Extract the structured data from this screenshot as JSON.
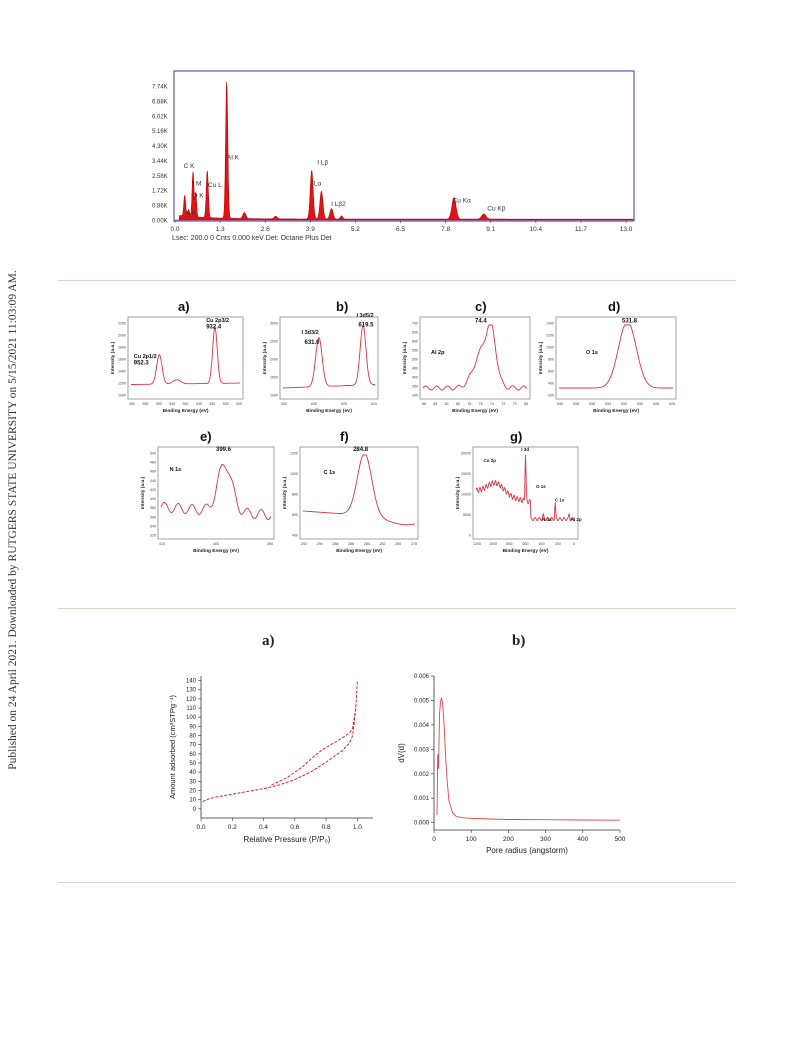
{
  "side_note": "Published on 24 April 2021. Downloaded by RUTGERS STATE UNIVERSITY on 5/15/2021 11:03:09 AM.",
  "eds": {
    "footer": "Lsec: 200.0 0 Cnts  0.000 keV Det: Octane Plus Det",
    "y_ticks": [
      "7.74K",
      "6.88K",
      "6.02K",
      "5.16K",
      "4.30K",
      "3.44K",
      "2.58K",
      "1.72K",
      "0.86K",
      "0.00K"
    ],
    "x_ticks": [
      "0.0",
      "1.3",
      "2.6",
      "3.9",
      "5.2",
      "6.5",
      "7.8",
      "9.1",
      "10.4",
      "11.7",
      "13.0"
    ],
    "peak_labels": [
      "C  K",
      "N  K",
      "O  K",
      "Cu L",
      "I  M",
      "Al K",
      "I  Lβ",
      "I  Lα",
      "I  Lβ2",
      "Cu Kα",
      "Cu Kβ"
    ]
  },
  "xps": {
    "y_label": "Intensity (a.u.)",
    "x_label": "Binding Energy (eV)",
    "panels": [
      {
        "letter": "a)",
        "annotations": [
          "Cu 2p1/2",
          "952.3",
          "Cu 2p3/2",
          "932.4"
        ],
        "x_ticks": [
          "960",
          "955",
          "950",
          "945",
          "940",
          "935",
          "930",
          "925",
          "920"
        ],
        "y_ticks": [
          "1000",
          "1200",
          "1400",
          "1600",
          "1800",
          "2000",
          "2200"
        ]
      },
      {
        "letter": "b)",
        "annotations": [
          "I 3d3/2",
          "631.0",
          "I 3d5/2",
          "619.5"
        ],
        "x_ticks": [
          "640",
          "630",
          "620",
          "610"
        ],
        "y_ticks": [
          "1000",
          "1500",
          "2000",
          "2500",
          "3000"
        ]
      },
      {
        "letter": "c)",
        "annotations": [
          "Al 2p",
          "74.4"
        ],
        "x_ticks": [
          "86",
          "84",
          "82",
          "80",
          "78",
          "76",
          "74",
          "72",
          "70",
          "68"
        ],
        "y_ticks": [
          "300",
          "350",
          "400",
          "450",
          "500",
          "550",
          "600",
          "650",
          "700"
        ]
      },
      {
        "letter": "d)",
        "annotations": [
          "O 1s",
          "531.8"
        ],
        "x_ticks": [
          "540",
          "538",
          "536",
          "534",
          "532",
          "530",
          "528",
          "526"
        ],
        "y_ticks": [
          "200",
          "400",
          "600",
          "800",
          "1000",
          "1200",
          "1400"
        ]
      },
      {
        "letter": "e)",
        "annotations": [
          "N 1s",
          "399.6"
        ],
        "x_ticks": [
          "410",
          "400",
          "390"
        ],
        "y_ticks": [
          "320",
          "340",
          "360",
          "380",
          "400",
          "420",
          "440",
          "460",
          "480",
          "500"
        ]
      },
      {
        "letter": "f)",
        "annotations": [
          "C 1s",
          "284.8"
        ],
        "x_ticks": [
          "292",
          "290",
          "288",
          "286",
          "284",
          "282",
          "280",
          "278"
        ],
        "y_ticks": [
          "400",
          "600",
          "800",
          "1000",
          "1200"
        ]
      },
      {
        "letter": "g)",
        "annotations": [
          "Cu 2p",
          "I 3d",
          "O 1s",
          "C 1s",
          "N 1s",
          "Al 2p"
        ],
        "x_ticks": [
          "1200",
          "1000",
          "800",
          "600",
          "400",
          "200",
          "0"
        ],
        "y_ticks": [
          "0",
          "5000",
          "10000",
          "15000",
          "20000"
        ]
      }
    ]
  },
  "bet": {
    "panel_a_letter": "a)",
    "panel_b_letter": "b)"
  },
  "chart_data": [
    {
      "type": "line",
      "title": "",
      "xlabel": "",
      "ylabel": "",
      "xlim": [
        0,
        13.2
      ],
      "ylim": [
        0,
        8.2
      ],
      "units": "K counts vs keV",
      "peaks": [
        {
          "label": "C  K",
          "energy": 0.28,
          "counts": 1.2
        },
        {
          "label": "N  K",
          "energy": 0.39,
          "counts": 0.4
        },
        {
          "label": "O  K",
          "energy": 0.52,
          "counts": 2.6
        },
        {
          "label": "Cu L",
          "energy": 0.93,
          "counts": 2.7
        },
        {
          "label": "Al K",
          "energy": 1.49,
          "counts": 7.9
        },
        {
          "label": "I  Lα",
          "energy": 3.94,
          "counts": 2.8
        },
        {
          "label": "I  Lβ",
          "energy": 4.22,
          "counts": 1.6
        },
        {
          "label": "I  Lβ2",
          "energy": 4.51,
          "counts": 0.6
        },
        {
          "label": "Cu Kα",
          "energy": 8.04,
          "counts": 1.25
        },
        {
          "label": "Cu Kβ",
          "energy": 8.9,
          "counts": 0.3
        }
      ]
    },
    {
      "type": "line",
      "xlabel": "Relative Pressure (P/P₀)",
      "ylabel": "Amount adsorbed (cm³STPg⁻¹)",
      "xlim": [
        0,
        1.1
      ],
      "ylim": [
        -10,
        145
      ],
      "x_ticks": [
        "0.0",
        "0.2",
        "0.4",
        "0.6",
        "0.8",
        "1.0"
      ],
      "y_ticks": [
        "0",
        "10",
        "20",
        "30",
        "40",
        "50",
        "60",
        "70",
        "80",
        "90",
        "100",
        "110",
        "120",
        "130",
        "140"
      ],
      "series": [
        {
          "x": [
            0.01,
            0.05,
            0.1,
            0.2,
            0.3,
            0.4,
            0.5,
            0.6,
            0.7,
            0.8,
            0.85,
            0.9,
            0.95,
            0.97,
            0.99,
            1.0
          ],
          "y": [
            8,
            11,
            13,
            16,
            19,
            22,
            26,
            32,
            40,
            51,
            57,
            63,
            72,
            80,
            110,
            140
          ]
        },
        {
          "x": [
            0.45,
            0.55,
            0.65,
            0.72,
            0.78,
            0.85,
            0.9,
            0.95,
            0.97,
            0.99
          ],
          "y": [
            26,
            34,
            46,
            57,
            65,
            72,
            77,
            83,
            88,
            110
          ]
        }
      ]
    },
    {
      "type": "line",
      "xlabel": "Pore radius (angstorm)",
      "ylabel": "dV(d)",
      "xlim": [
        0,
        500
      ],
      "ylim": [
        -0.0003,
        0.006
      ],
      "x_ticks": [
        "0",
        "100",
        "200",
        "300",
        "400",
        "500"
      ],
      "y_ticks": [
        "0.000",
        "0.001",
        "0.002",
        "0.003",
        "0.004",
        "0.005",
        "0.006"
      ],
      "series": [
        {
          "x": [
            8,
            10,
            12,
            15,
            18,
            20,
            22,
            25,
            28,
            30,
            35,
            40,
            50,
            60,
            80,
            100,
            150,
            200,
            300,
            400,
            500
          ],
          "y": [
            0.0003,
            0.0028,
            0.0022,
            0.0045,
            0.005,
            0.0051,
            0.005,
            0.0045,
            0.0038,
            0.003,
            0.0018,
            0.0009,
            0.0004,
            0.00025,
            0.0002,
            0.00018,
            0.00015,
            0.00013,
            0.00012,
            0.00011,
            0.0001
          ]
        }
      ]
    }
  ]
}
